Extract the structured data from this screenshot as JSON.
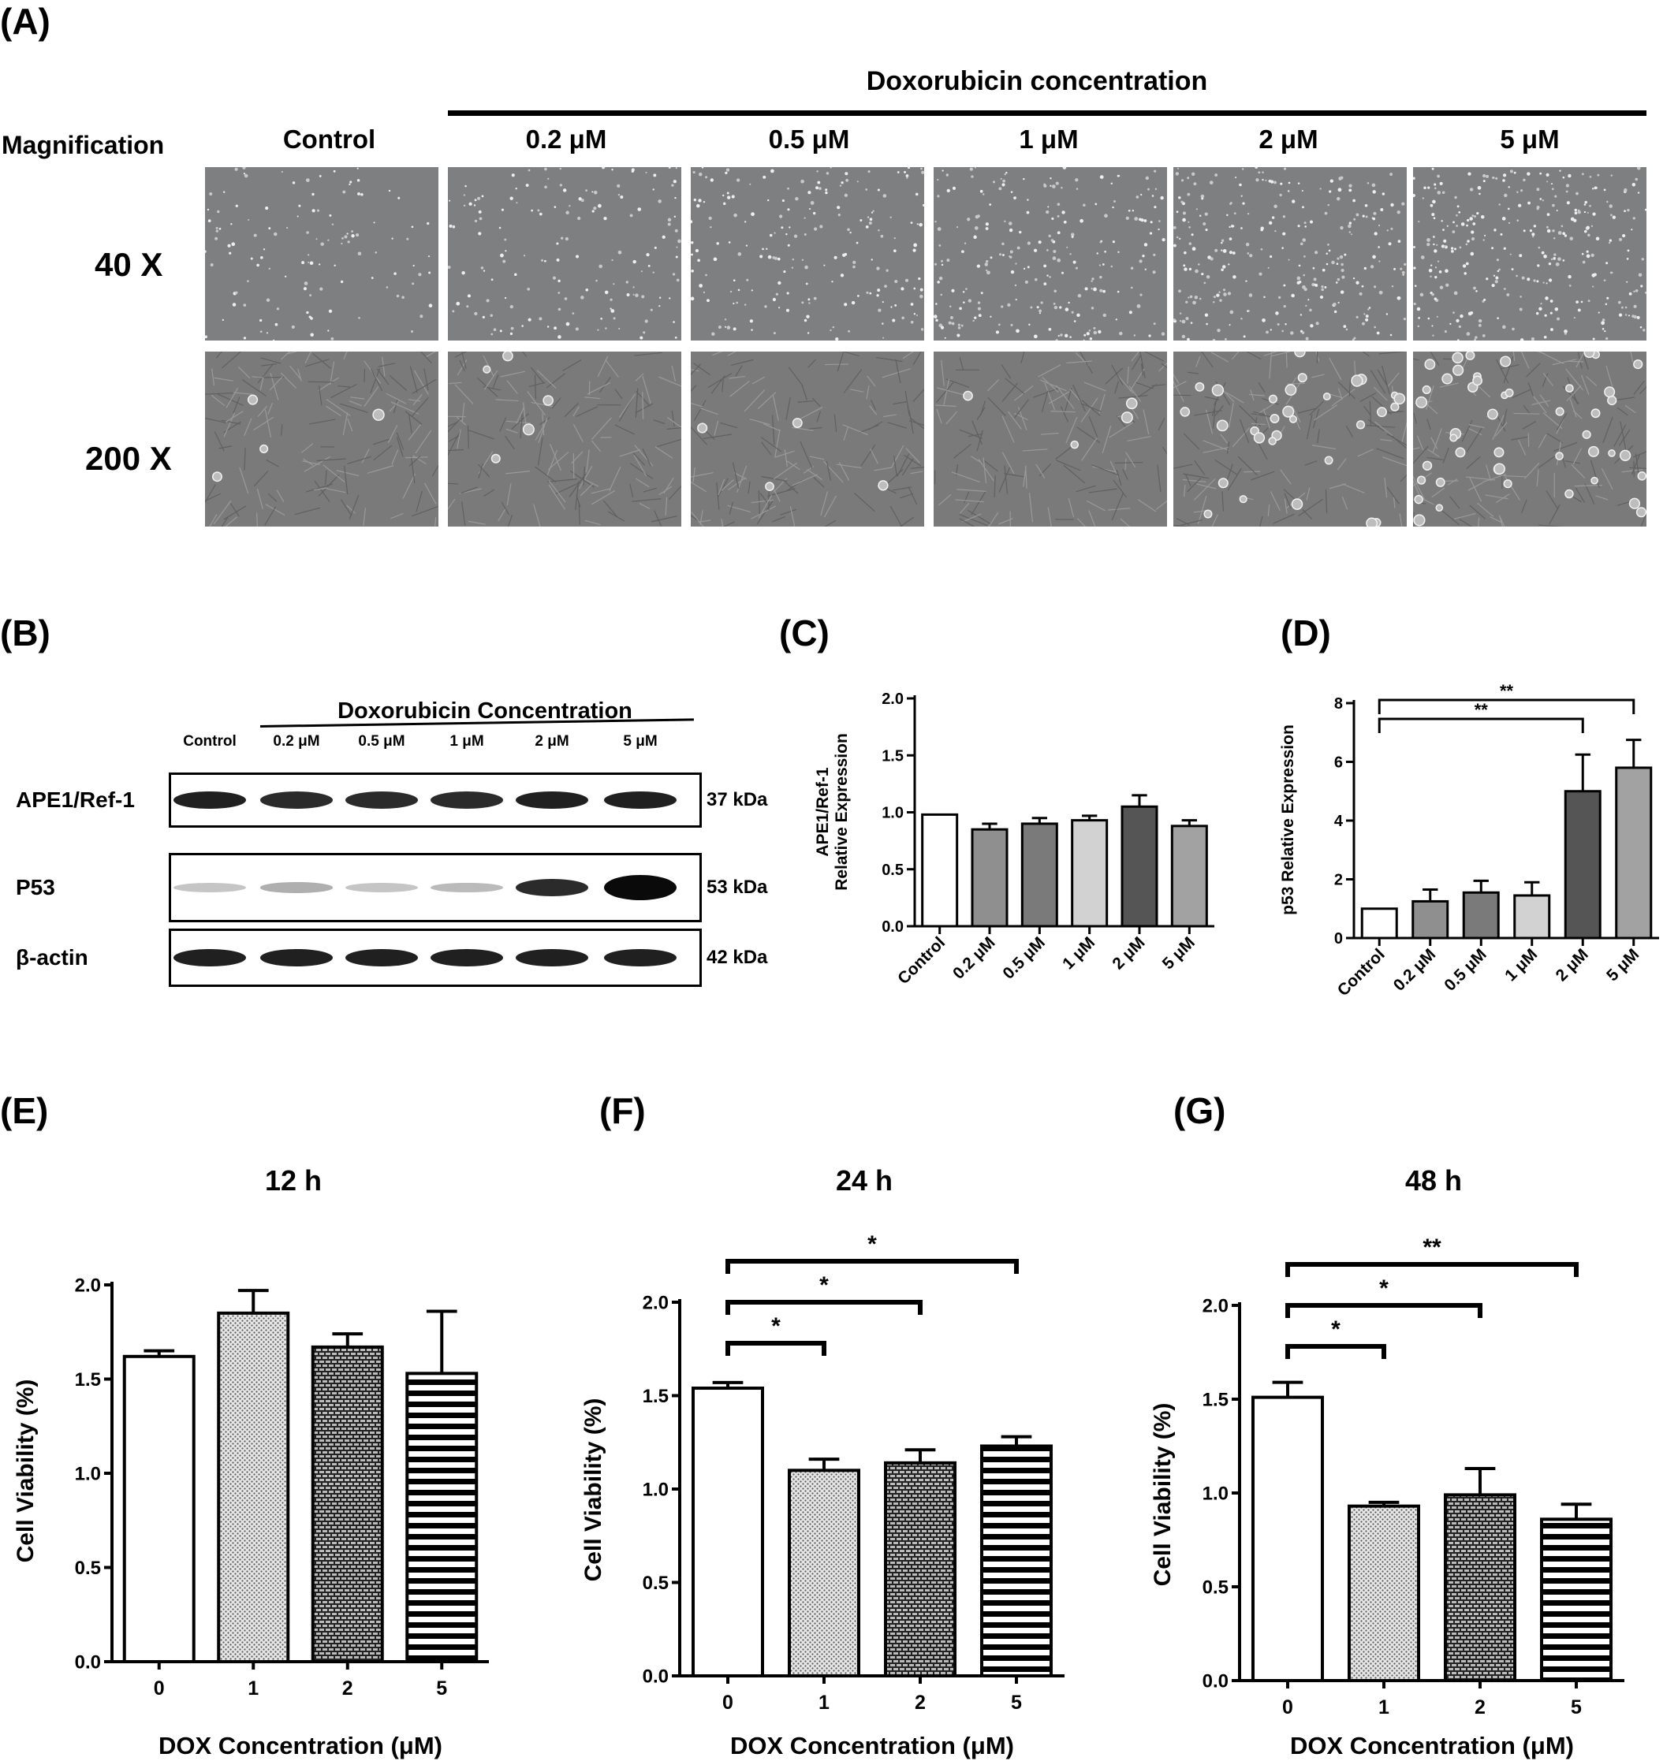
{
  "panelA": {
    "label": "(A)",
    "header": "Doxorubicin concentration",
    "magnification_label": "Magnification",
    "columns": [
      "Control",
      "0.2 μM",
      "0.5 μM",
      "1 μM",
      "2 μM",
      "5 μM"
    ],
    "rows": [
      "40 X",
      "200 X"
    ]
  },
  "panelB": {
    "label": "(B)",
    "header": "Doxorubicin Concentration",
    "lanes": [
      "Control",
      "0.2 μM",
      "0.5 μM",
      "1 μM",
      "2 μM",
      "5 μM"
    ],
    "blots": [
      {
        "protein": "APE1/Ref-1",
        "size": "37 kDa",
        "intensity": [
          0.9,
          0.85,
          0.85,
          0.85,
          0.9,
          0.9
        ]
      },
      {
        "protein": "P53",
        "size": "53 kDa",
        "intensity": [
          0.15,
          0.25,
          0.15,
          0.2,
          0.85,
          1.0
        ]
      },
      {
        "protein": "β-actin",
        "size": "42 kDa",
        "intensity": [
          0.9,
          0.9,
          0.9,
          0.9,
          0.9,
          0.9
        ]
      }
    ]
  },
  "panelC": {
    "label": "(C)"
  },
  "panelD": {
    "label": "(D)"
  },
  "panelE": {
    "label": "(E)"
  },
  "panelF": {
    "label": "(F)"
  },
  "panelG": {
    "label": "(G)"
  },
  "chart_data": [
    {
      "id": "C",
      "type": "bar",
      "categories": [
        "Control",
        "0.2 μM",
        "0.5 μM",
        "1 μM",
        "2 μM",
        "5 μM"
      ],
      "values": [
        0.98,
        0.85,
        0.9,
        0.93,
        1.05,
        0.88
      ],
      "errors": [
        0.0,
        0.05,
        0.05,
        0.04,
        0.1,
        0.05
      ],
      "colors": [
        "#ffffff",
        "#8f8f8f",
        "#7a7a7a",
        "#d2d2d2",
        "#555555",
        "#a2a2a2"
      ],
      "ylabel": [
        "APE1/Ref-1",
        "Relative Expression"
      ],
      "ylim": [
        0,
        2.0
      ],
      "yticks": [
        "0.0",
        "0.5",
        "1.0",
        "1.5",
        "2.0"
      ],
      "significance": []
    },
    {
      "id": "D",
      "type": "bar",
      "categories": [
        "Control",
        "0.2 μM",
        "0.5 μM",
        "1 μM",
        "2 μM",
        "5 μM"
      ],
      "values": [
        1.0,
        1.25,
        1.55,
        1.45,
        5.0,
        5.8
      ],
      "errors": [
        0.0,
        0.4,
        0.4,
        0.45,
        1.25,
        0.95
      ],
      "colors": [
        "#ffffff",
        "#8f8f8f",
        "#7a7a7a",
        "#d2d2d2",
        "#555555",
        "#a2a2a2"
      ],
      "ylabel": [
        "p53 Relative Expression"
      ],
      "ylim": [
        0,
        8
      ],
      "yticks": [
        "0",
        "2",
        "4",
        "6",
        "8"
      ],
      "significance": [
        {
          "from": 0,
          "to": 4,
          "text": "**"
        },
        {
          "from": 0,
          "to": 5,
          "text": "**"
        }
      ]
    },
    {
      "id": "E",
      "type": "bar",
      "title": "12 h",
      "categories": [
        "0",
        "1",
        "2",
        "5"
      ],
      "values": [
        1.62,
        1.85,
        1.67,
        1.53
      ],
      "errors": [
        0.03,
        0.12,
        0.07,
        0.33
      ],
      "patterns": [
        "none",
        "dots",
        "brick",
        "hstripe"
      ],
      "xlabel": "DOX Concentration (μM)",
      "ylabel": [
        "Cell Viability (%)"
      ],
      "ylim": [
        0,
        2.0
      ],
      "yticks": [
        "0.0",
        "0.5",
        "1.0",
        "1.5",
        "2.0"
      ],
      "significance": []
    },
    {
      "id": "F",
      "type": "bar",
      "title": "24 h",
      "categories": [
        "0",
        "1",
        "2",
        "5"
      ],
      "values": [
        1.54,
        1.1,
        1.14,
        1.23
      ],
      "errors": [
        0.03,
        0.06,
        0.07,
        0.05
      ],
      "patterns": [
        "none",
        "dots",
        "brick",
        "hstripe"
      ],
      "xlabel": "DOX Concentration (μM)",
      "ylabel": [
        "Cell Viability (%)"
      ],
      "ylim": [
        0,
        2.0
      ],
      "yticks": [
        "0.0",
        "0.5",
        "1.0",
        "1.5",
        "2.0"
      ],
      "significance": [
        {
          "from": 0,
          "to": 1,
          "text": "*"
        },
        {
          "from": 0,
          "to": 2,
          "text": "*"
        },
        {
          "from": 0,
          "to": 3,
          "text": "*"
        }
      ]
    },
    {
      "id": "G",
      "type": "bar",
      "title": "48 h",
      "categories": [
        "0",
        "1",
        "2",
        "5"
      ],
      "values": [
        1.51,
        0.93,
        0.99,
        0.86
      ],
      "errors": [
        0.08,
        0.02,
        0.14,
        0.08
      ],
      "patterns": [
        "none",
        "dots",
        "brick",
        "hstripe"
      ],
      "xlabel": "DOX Concentration (μM)",
      "ylabel": [
        "Cell Viability (%)"
      ],
      "ylim": [
        0,
        2.0
      ],
      "yticks": [
        "0.0",
        "0.5",
        "1.0",
        "1.5",
        "2.0"
      ],
      "significance": [
        {
          "from": 0,
          "to": 1,
          "text": "*"
        },
        {
          "from": 0,
          "to": 2,
          "text": "*"
        },
        {
          "from": 0,
          "to": 3,
          "text": "**"
        }
      ]
    }
  ]
}
